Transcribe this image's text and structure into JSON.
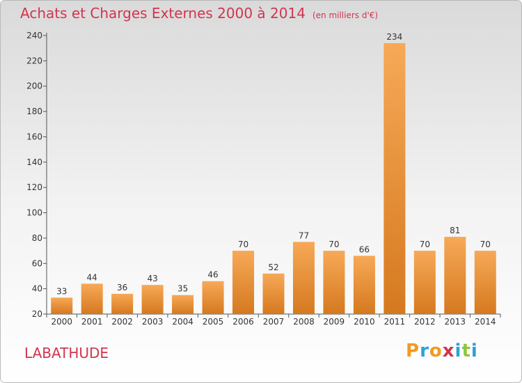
{
  "header": {
    "title": "Achats et Charges Externes 2000 à 2014",
    "unit": "(en milliers d'€)"
  },
  "footer": {
    "commune": "LABATHUDE",
    "logo_text": "Proxiti"
  },
  "colors": {
    "title": "#d2344f",
    "bar_light": "#f7a957",
    "bar_dark": "#d5791f",
    "axis": "#555555",
    "logo": [
      "#f39a22",
      "#2aa2d8",
      "#f39a22",
      "#d2344f",
      "#2aa2d8",
      "#8cc63f",
      "#2aa2d8"
    ]
  },
  "chart_data": {
    "type": "bar",
    "title": "Achats et Charges Externes 2000 à 2014",
    "subtitle": "(en milliers d'€)",
    "xlabel": "",
    "ylabel": "",
    "categories": [
      "2000",
      "2001",
      "2002",
      "2003",
      "2004",
      "2005",
      "2006",
      "2007",
      "2008",
      "2009",
      "2010",
      "2011",
      "2012",
      "2013",
      "2014"
    ],
    "values": [
      33,
      44,
      36,
      43,
      35,
      46,
      70,
      52,
      77,
      70,
      66,
      234,
      70,
      81,
      70
    ],
    "ylim": [
      20,
      240
    ],
    "yticks": [
      20,
      40,
      60,
      80,
      100,
      120,
      140,
      160,
      180,
      200,
      220,
      240
    ],
    "grid": false,
    "legend": "none"
  }
}
